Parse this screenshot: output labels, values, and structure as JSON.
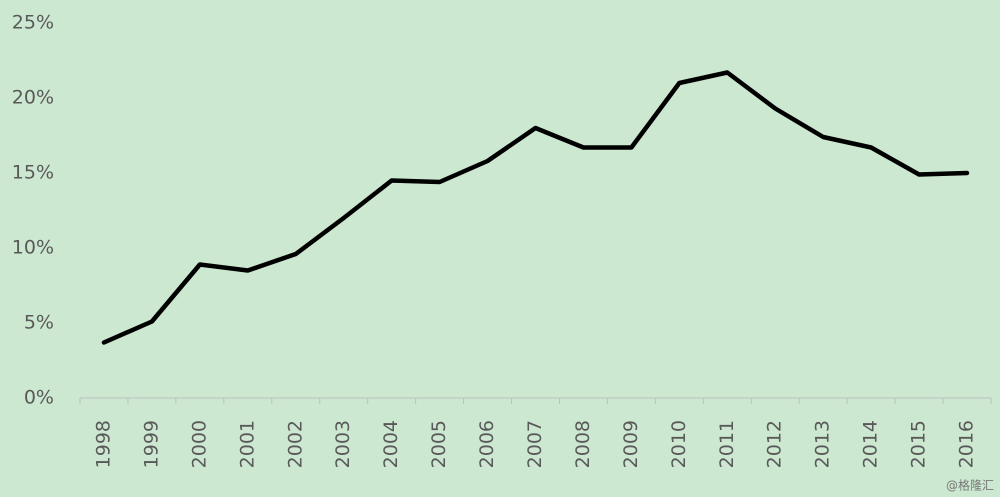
{
  "chart_data": {
    "type": "line",
    "categories": [
      "1998",
      "1999",
      "2000",
      "2001",
      "2002",
      "2003",
      "2004",
      "2005",
      "2006",
      "2007",
      "2008",
      "2009",
      "2010",
      "2011",
      "2012",
      "2013",
      "2014",
      "2015",
      "2016"
    ],
    "series": [
      {
        "name": null,
        "color": "#000000",
        "values": [
          3.7,
          5.1,
          8.9,
          8.5,
          9.6,
          12.0,
          14.5,
          14.4,
          15.8,
          18.0,
          16.7,
          16.7,
          21.0,
          21.7,
          19.3,
          17.4,
          16.7,
          14.9,
          15.0
        ]
      }
    ],
    "ylim": [
      0,
      25
    ],
    "yticks": [
      {
        "value": 0,
        "label": "0%"
      },
      {
        "value": 5,
        "label": "5%"
      },
      {
        "value": 10,
        "label": "10%"
      },
      {
        "value": 15,
        "label": "15%"
      },
      {
        "value": 20,
        "label": "20%"
      },
      {
        "value": 25,
        "label": "25%"
      }
    ],
    "grid": false,
    "watermark": "@格隆汇"
  }
}
